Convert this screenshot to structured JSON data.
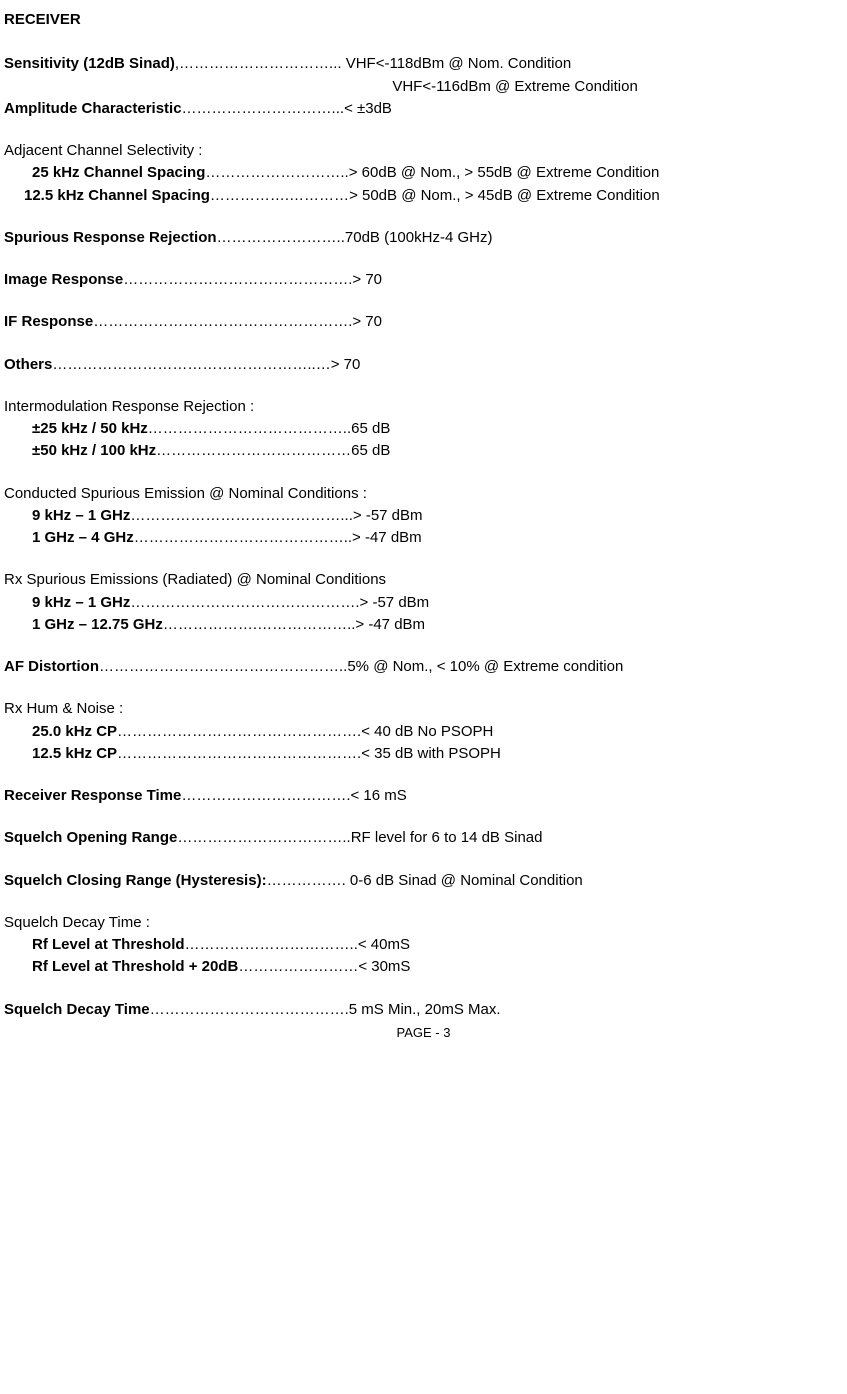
{
  "title": "RECEIVER",
  "specs": {
    "sensitivity": {
      "label": "Sensitivity (12dB Sinad)",
      "dots": ",…………………………...",
      "val1": " VHF<-118dBm @ Nom. Condition",
      "val2": "  VHF<-116dBm @ Extreme Condition"
    },
    "amplitude": {
      "label": "Amplitude Characteristic",
      "dots": "…………………………...",
      "val": "< ±3dB"
    },
    "adjacent": {
      "header": "Adjacent Channel Selectivity :",
      "r1_label": "25 kHz Channel Spacing",
      "r1_dots": "………………………..",
      "r1_val": "> 60dB @ Nom., > 55dB @ Extreme Condition",
      "r2_label": "12.5 kHz Channel Spacing",
      "r2_dots": "…………….…………",
      "r2_val": "> 50dB @ Nom., > 45dB @ Extreme Condition"
    },
    "spurious_rej": {
      "label": "Spurious Response Rejection",
      "dots": "……………………..",
      "val": "70dB (100kHz-4 GHz)"
    },
    "image_resp": {
      "label": "Image Response",
      "dots": "……………………………………….",
      "val": "> 70"
    },
    "if_resp": {
      "label": "IF Response",
      "dots": "…………………………………………….",
      "val": "> 70"
    },
    "others": {
      "label": "Others",
      "dots": "……………………………………………..…",
      "val": "> 70"
    },
    "intermod": {
      "header": "Intermodulation Response Rejection :",
      "r1_label": "±25 kHz / 50 kHz",
      "r1_dots": "…………………………………..",
      "r1_val": "65 dB",
      "r2_label": "±50 kHz / 100 kHz",
      "r2_dots": "…………………………………",
      "r2_val": "65 dB"
    },
    "cond_spur": {
      "header": "Conducted Spurious Emission @ Nominal Conditions :",
      "r1_label": "9 kHz – 1 GHz",
      "r1_dots": "……………………………………...",
      "r1_val": "> -57 dBm",
      "r2_label": "1 GHz – 4 GHz",
      "r2_dots": "……………………………………..",
      "r2_val": "> -47 dBm"
    },
    "rx_spur": {
      "header": "Rx Spurious Emissions (Radiated) @ Nominal Conditions",
      "r1_label": "9 kHz – 1 GHz",
      "r1_dots": "……………………………………….",
      "r1_val": "> -57 dBm",
      "r2_label": "1 GHz – 12.75 GHz",
      "r2_dots": "……………….………………..",
      "r2_val": "> -47 dBm"
    },
    "af_dist": {
      "label": "AF Distortion",
      "dots": "…………………………………………..",
      "val": "5% @ Nom., < 10% @ Extreme condition"
    },
    "hum": {
      "header": "Rx Hum & Noise :",
      "r1_label": "25.0 kHz CP",
      "r1_dots": "………………………………………….",
      "r1_val": "< 40 dB No PSOPH",
      "r2_label": "12.5 kHz CP",
      "r2_dots": "………………………………………….",
      "r2_val": "< 35 dB with PSOPH"
    },
    "rx_resp_time": {
      "label": "Receiver Response Time",
      "dots": "…………………………….",
      "val": "< 16 mS"
    },
    "sq_open": {
      "label": "Squelch Opening Range",
      "dots": "……………………………..",
      "val": "RF level for 6 to 14 dB Sinad"
    },
    "sq_close": {
      "label": "Squelch Closing Range (Hysteresis):",
      "dots": "…………….",
      "val": " 0-6 dB Sinad @ Nominal Condition"
    },
    "sq_decay": {
      "header": "Squelch Decay Time :",
      "r1_label": "Rf Level at Threshold",
      "r1_dots": "……………………………..",
      "r1_val": "< 40mS",
      "r2_label": "Rf Level at Threshold + 20dB",
      "r2_dots": "……………………",
      "r2_val": "< 30mS"
    },
    "sq_decay2": {
      "label": "Squelch Decay Time",
      "dots": "………………………………….",
      "val": "5 mS Min., 20mS Max."
    }
  },
  "footer": "PAGE - 3"
}
